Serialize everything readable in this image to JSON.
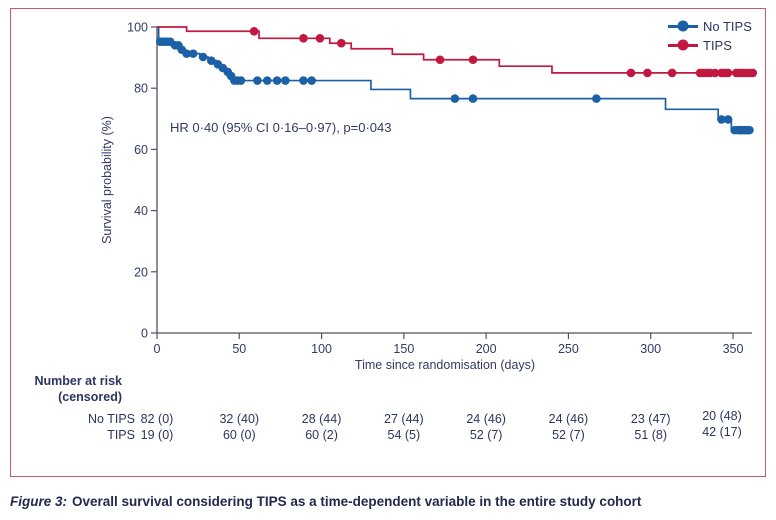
{
  "figure": {
    "border_color": "#d05a68",
    "annotation": "HR 0·40 (95% CI 0·16–0·97), p=0·043",
    "caption_label": "Figure 3:",
    "caption_text": "Overall survival considering TIPS as a time-dependent variable in the entire study cohort"
  },
  "chart_data": {
    "type": "line",
    "subtype": "kaplan-meier-step",
    "title": "",
    "xlabel": "Time since randomisation (days)",
    "ylabel": "Survival probability (%)",
    "x_ticks": [
      0,
      50,
      100,
      150,
      200,
      250,
      300,
      350
    ],
    "y_ticks": [
      0,
      20,
      40,
      60,
      80,
      100
    ],
    "xlim": [
      0,
      365
    ],
    "ylim": [
      0,
      100
    ],
    "grid": false,
    "legend_position": "top-right",
    "annotation": "HR 0·40 (95% CI 0·16–0·97), p=0·043",
    "series": [
      {
        "name": "No TIPS",
        "color": "#1c61a6",
        "steps": [
          [
            0,
            100
          ],
          [
            1,
            95.2
          ],
          [
            10,
            94.0
          ],
          [
            14,
            92.6
          ],
          [
            17,
            91.3
          ],
          [
            26,
            90.2
          ],
          [
            31,
            89.0
          ],
          [
            36,
            87.8
          ],
          [
            39,
            86.6
          ],
          [
            42,
            85.3
          ],
          [
            44,
            84.0
          ],
          [
            46,
            82.5
          ],
          [
            130,
            79.6
          ],
          [
            154,
            76.6
          ],
          [
            309,
            73.1
          ],
          [
            341,
            69.8
          ],
          [
            349,
            66.3
          ],
          [
            361,
            66.3
          ]
        ],
        "censored": [
          [
            2,
            95.2
          ],
          [
            4,
            95.2
          ],
          [
            6,
            95.2
          ],
          [
            8,
            95.2
          ],
          [
            11,
            94.0
          ],
          [
            13,
            94.0
          ],
          [
            15,
            92.6
          ],
          [
            18,
            91.3
          ],
          [
            22,
            91.3
          ],
          [
            28,
            90.2
          ],
          [
            33,
            89.0
          ],
          [
            37,
            87.8
          ],
          [
            40,
            86.6
          ],
          [
            43,
            85.3
          ],
          [
            45,
            84.0
          ],
          [
            47,
            82.5
          ],
          [
            49,
            82.5
          ],
          [
            51,
            82.5
          ],
          [
            61,
            82.5
          ],
          [
            67,
            82.5
          ],
          [
            73,
            82.5
          ],
          [
            78,
            82.5
          ],
          [
            89,
            82.5
          ],
          [
            94,
            82.5
          ],
          [
            181,
            76.6
          ],
          [
            192,
            76.6
          ],
          [
            267,
            76.6
          ],
          [
            343,
            69.8
          ],
          [
            347,
            69.8
          ],
          [
            351,
            66.3
          ],
          [
            353,
            66.3
          ],
          [
            354,
            66.3
          ],
          [
            355,
            66.3
          ],
          [
            356,
            66.3
          ],
          [
            357,
            66.3
          ],
          [
            358,
            66.3
          ],
          [
            359,
            66.3
          ],
          [
            360,
            66.3
          ]
        ]
      },
      {
        "name": "TIPS",
        "color": "#c2183f",
        "steps": [
          [
            0,
            100
          ],
          [
            18,
            98.6
          ],
          [
            62,
            96.3
          ],
          [
            105,
            94.7
          ],
          [
            118,
            92.9
          ],
          [
            143,
            91.1
          ],
          [
            162,
            89.3
          ],
          [
            208,
            87.2
          ],
          [
            240,
            85.0
          ],
          [
            363,
            85.0
          ]
        ],
        "censored": [
          [
            59,
            98.6
          ],
          [
            89,
            96.3
          ],
          [
            99,
            96.3
          ],
          [
            112,
            94.7
          ],
          [
            172,
            89.3
          ],
          [
            192,
            89.3
          ],
          [
            288,
            85.0
          ],
          [
            298,
            85.0
          ],
          [
            313,
            85.0
          ],
          [
            330,
            85.0
          ],
          [
            332,
            85.0
          ],
          [
            334,
            85.0
          ],
          [
            336,
            85.0
          ],
          [
            339,
            85.0
          ],
          [
            343,
            85.0
          ],
          [
            345,
            85.0
          ],
          [
            347,
            85.0
          ],
          [
            352,
            85.0
          ],
          [
            354,
            85.0
          ],
          [
            356,
            85.0
          ],
          [
            358,
            85.0
          ],
          [
            360,
            85.0
          ],
          [
            362,
            85.0
          ]
        ]
      }
    ]
  },
  "at_risk": {
    "header_line1": "Number at risk",
    "header_line2": "(censored)",
    "time_points": [
      0,
      50,
      100,
      150,
      200,
      250,
      300,
      350
    ],
    "rows": [
      {
        "label": "No TIPS",
        "values": [
          "82 (0)",
          "32 (40)",
          "28 (44)",
          "27 (44)",
          "24 (46)",
          "24 (46)",
          "23 (47)",
          "20 (48)"
        ]
      },
      {
        "label": "TIPS",
        "values": [
          "19 (0)",
          "60 (0)",
          "60 (2)",
          "54 (5)",
          "52 (7)",
          "52 (7)",
          "51 (8)",
          "42 (17)"
        ]
      }
    ]
  }
}
